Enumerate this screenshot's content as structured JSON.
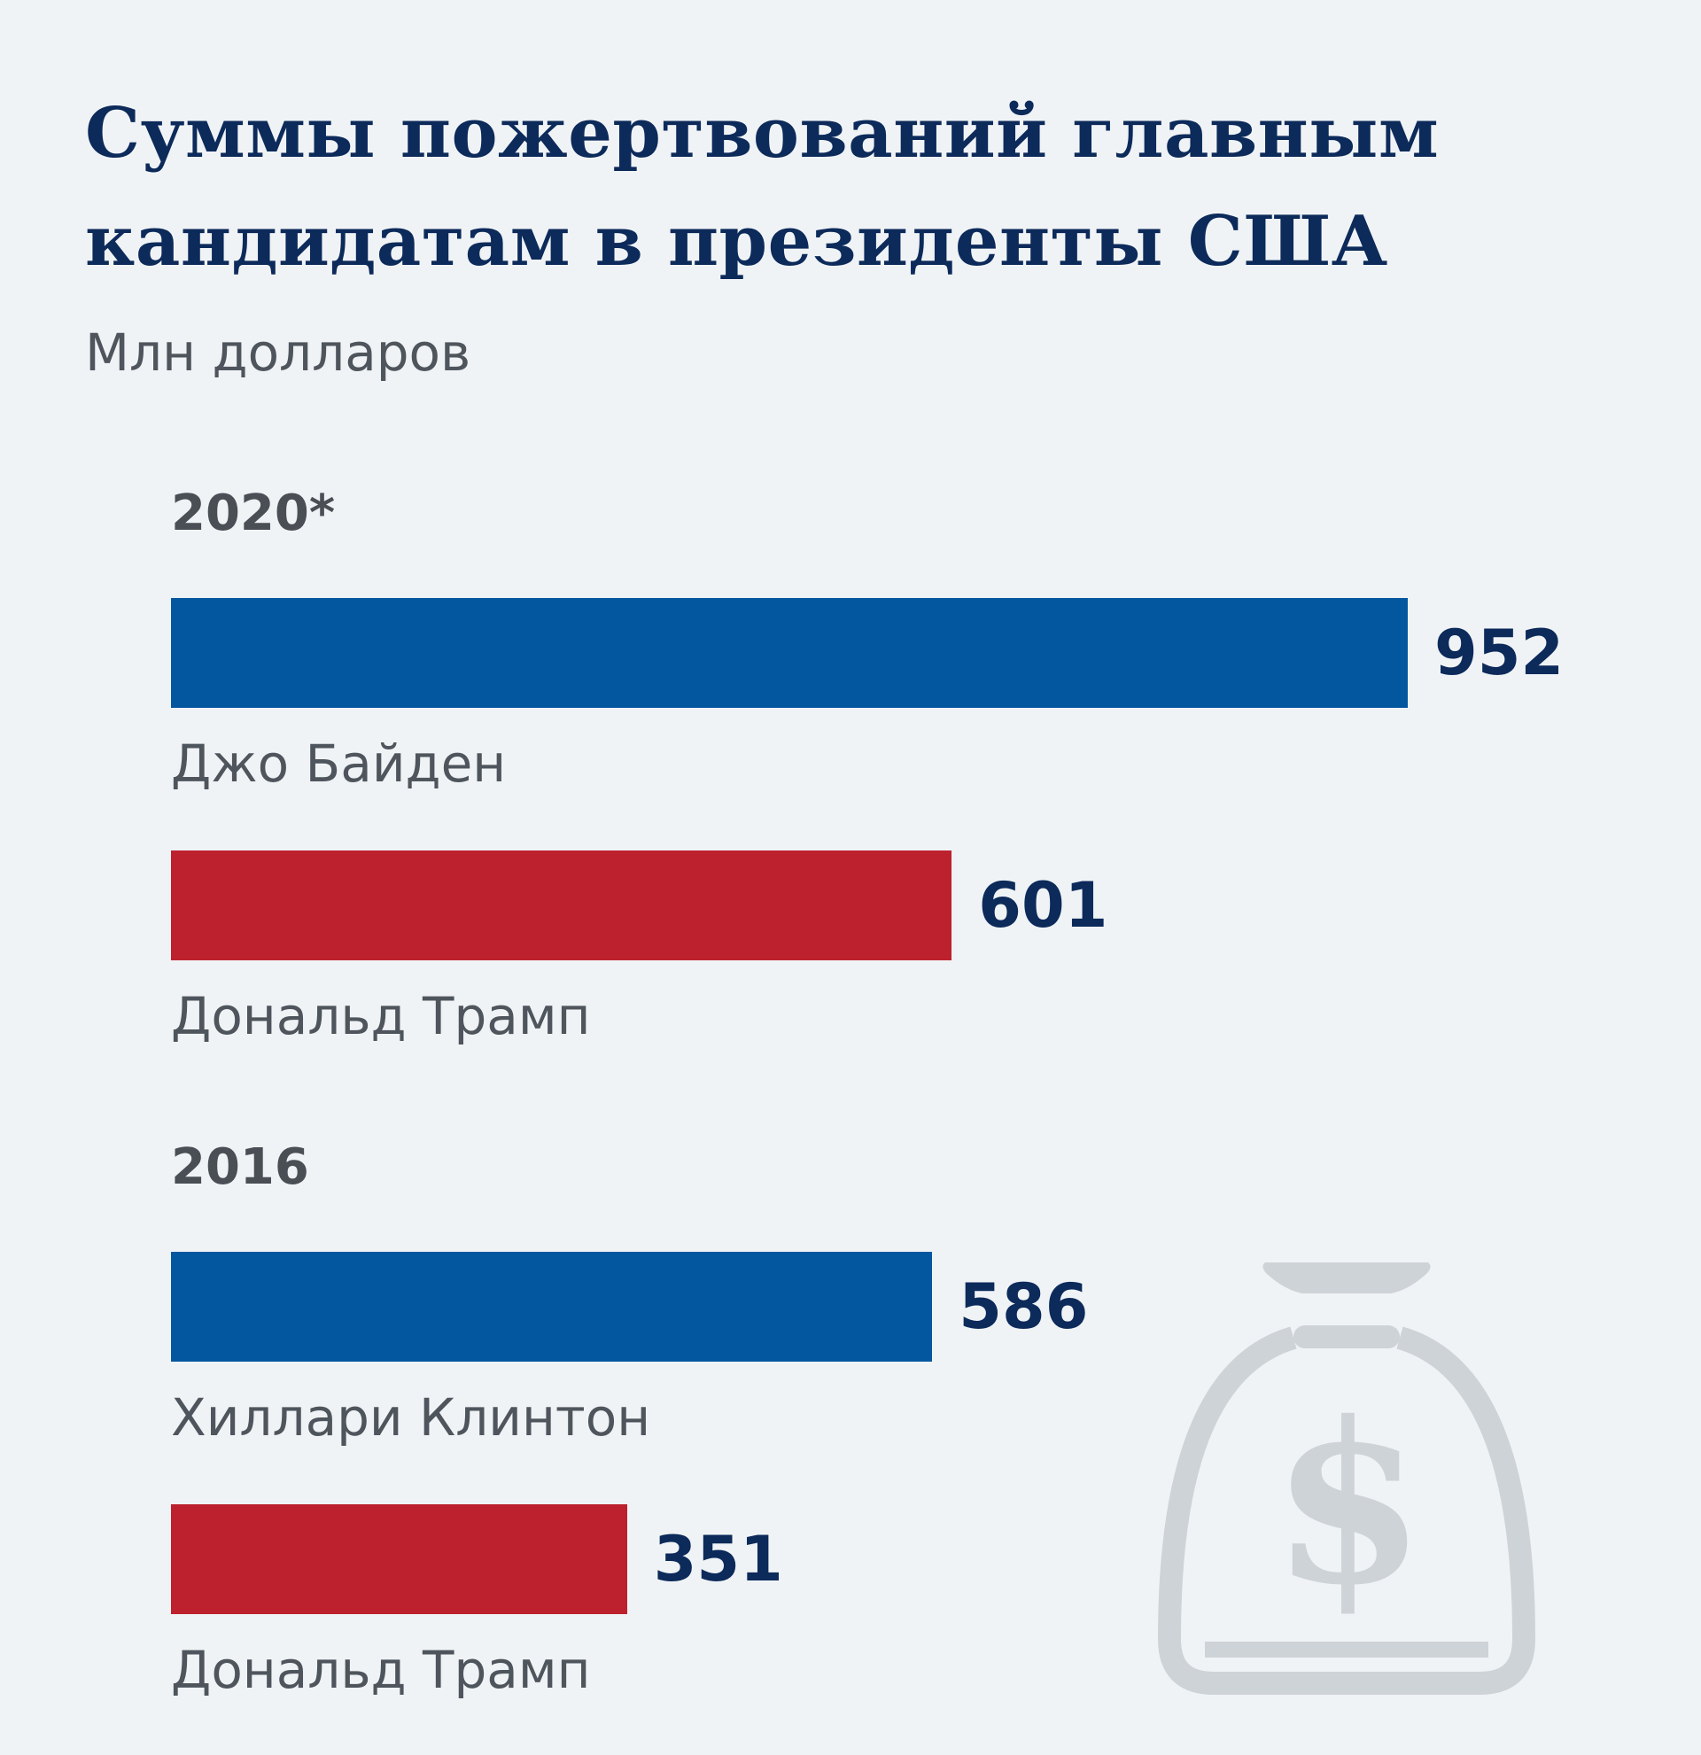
{
  "title": "Суммы пожертвований главным кандидатам в президенты США",
  "subtitle": "Млн долларов",
  "colors": {
    "democrat": "#03579f",
    "republican": "#bc212d",
    "title": "#0c2a5a",
    "background": "#f0f3f6",
    "icon": "#ced3d8"
  },
  "icon": "money-bag-dollar-icon",
  "chart_data": {
    "type": "bar",
    "orientation": "horizontal",
    "title": "Суммы пожертвований главным кандидатам в президенты США",
    "ylabel": "Млн долларов",
    "xlim": [
      0,
      952
    ],
    "grid": false,
    "groups": [
      {
        "label": "2020*",
        "bars": [
          {
            "category": "Джо Байден",
            "value": 952,
            "value_label": "952",
            "party": "democrat"
          },
          {
            "category": "Дональд Трамп",
            "value": 601,
            "value_label": "601",
            "party": "republican"
          }
        ]
      },
      {
        "label": "2016",
        "bars": [
          {
            "category": "Хиллари Клинтон",
            "value": 586,
            "value_label": "586",
            "party": "democrat"
          },
          {
            "category": "Дональд Трамп",
            "value": 351,
            "value_label": "351",
            "party": "republican"
          }
        ]
      }
    ]
  }
}
